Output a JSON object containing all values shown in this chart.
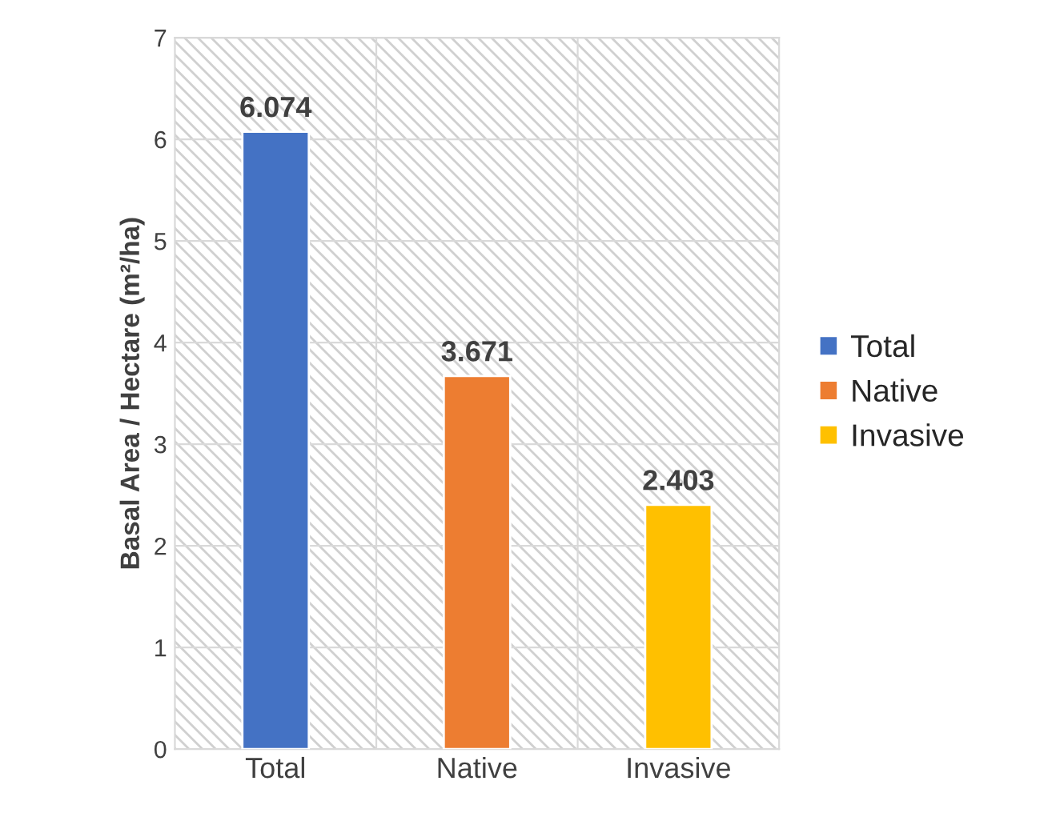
{
  "chart_data": {
    "type": "bar",
    "ylabel": "Basal Area / Hectare (m²/ha)",
    "categories": [
      "Total",
      "Native",
      "Invasive"
    ],
    "series": [
      {
        "name": "Total",
        "color": "#4472c4",
        "values": [
          6.074,
          null,
          null
        ]
      },
      {
        "name": "Native",
        "color": "#ed7d31",
        "values": [
          null,
          3.671,
          null
        ]
      },
      {
        "name": "Invasive",
        "color": "#ffc000",
        "values": [
          null,
          null,
          2.403
        ]
      }
    ],
    "data_labels": true,
    "ylim": [
      0,
      7
    ],
    "yticks": [
      0,
      1,
      2,
      3,
      4,
      5,
      6,
      7
    ],
    "grid": true,
    "legend": "right"
  }
}
